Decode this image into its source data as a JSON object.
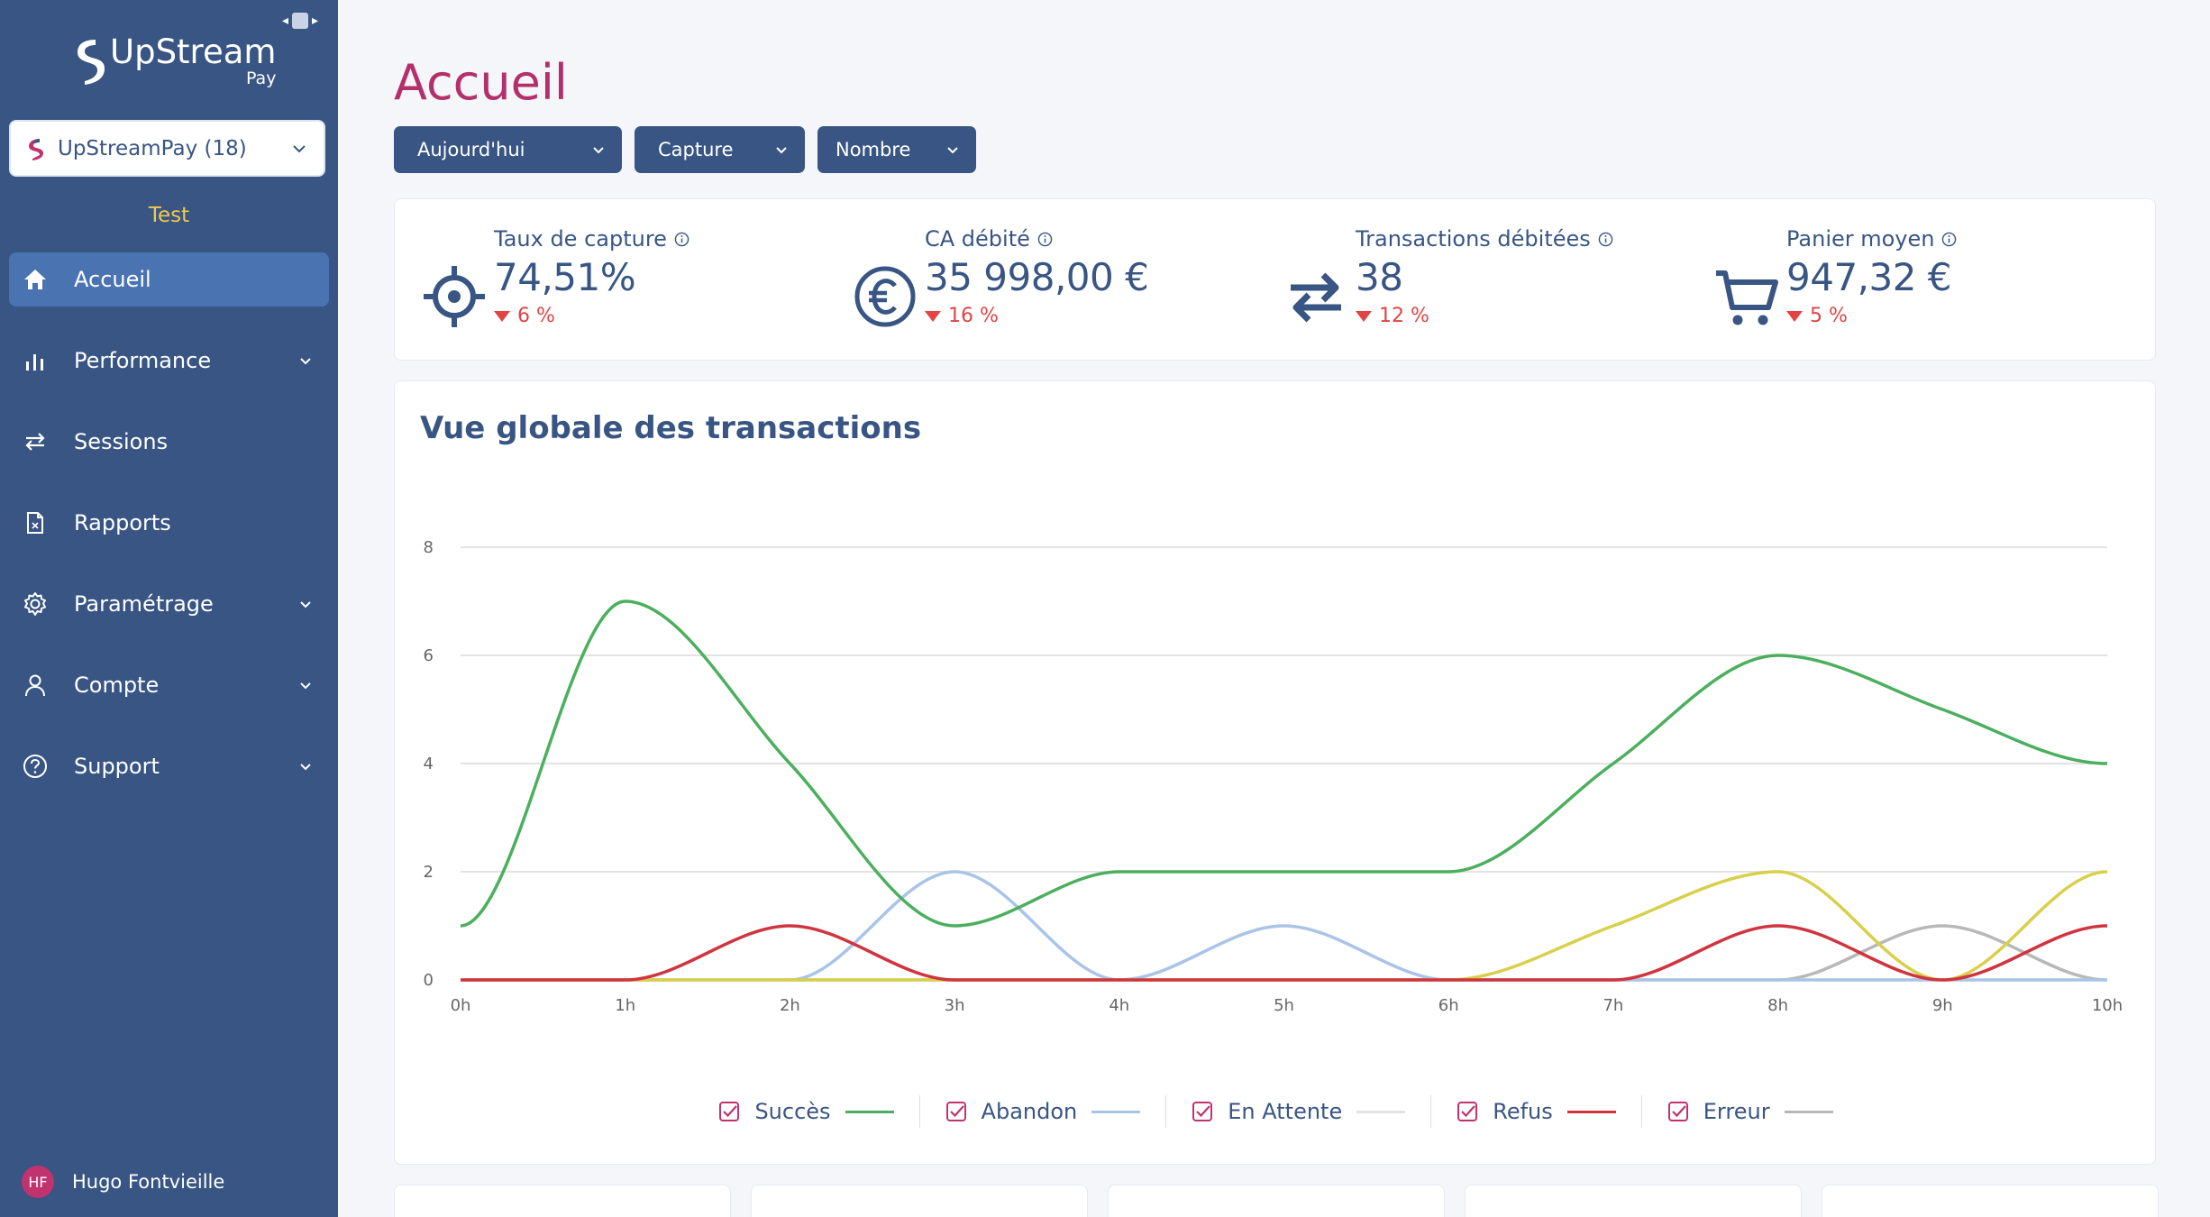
{
  "sidebar": {
    "brand": {
      "name": "UpStream",
      "sub": "Pay"
    },
    "merchant": {
      "label": "UpStreamPay (18)"
    },
    "environment": "Test",
    "nav": [
      {
        "label": "Accueil",
        "icon": "home-icon",
        "active": true,
        "expandable": false
      },
      {
        "label": "Performance",
        "icon": "bar-chart-icon",
        "active": false,
        "expandable": true
      },
      {
        "label": "Sessions",
        "icon": "arrows-exchange-icon",
        "active": false,
        "expandable": false
      },
      {
        "label": "Rapports",
        "icon": "file-icon",
        "active": false,
        "expandable": false
      },
      {
        "label": "Paramétrage",
        "icon": "gear-icon",
        "active": false,
        "expandable": true
      },
      {
        "label": "Compte",
        "icon": "user-icon",
        "active": false,
        "expandable": true
      },
      {
        "label": "Support",
        "icon": "help-circle-icon",
        "active": false,
        "expandable": true
      }
    ],
    "user": {
      "initials": "HF",
      "name": "Hugo Fontvieille"
    }
  },
  "main": {
    "title": "Accueil",
    "filters": [
      "Aujourd'hui",
      "Capture",
      "Nombre"
    ],
    "kpis": [
      {
        "title": "Taux de capture",
        "value": "74,51%",
        "delta": "6 %",
        "icon": "target-icon",
        "trend": "down"
      },
      {
        "title": "CA débité",
        "value": "35 998,00 €",
        "delta": "16 %",
        "icon": "euro-icon",
        "trend": "down"
      },
      {
        "title": "Transactions débitées",
        "value": "38",
        "delta": "12 %",
        "icon": "transfer-icon",
        "trend": "down"
      },
      {
        "title": "Panier moyen",
        "value": "947,32 €",
        "delta": "5 %",
        "icon": "cart-icon",
        "trend": "down"
      }
    ],
    "chart_title": "Vue globale des transactions"
  },
  "chart_data": {
    "type": "line",
    "title": "Vue globale des transactions",
    "x": [
      "0h",
      "1h",
      "2h",
      "3h",
      "4h",
      "5h",
      "6h",
      "7h",
      "8h",
      "9h",
      "10h"
    ],
    "yticks": [
      0,
      2,
      4,
      6,
      8
    ],
    "ylim": [
      0,
      8
    ],
    "grid": true,
    "legend_position": "bottom",
    "series": [
      {
        "name": "Succès",
        "color": "#4caf5f",
        "values": [
          1,
          7,
          4,
          1,
          2,
          2,
          2,
          4,
          6,
          5,
          4
        ]
      },
      {
        "name": "Abandon",
        "color": "#a9c4e8",
        "values": [
          0,
          0,
          0,
          2,
          0,
          1,
          0,
          0,
          0,
          0,
          0
        ]
      },
      {
        "name": "En Attente",
        "color": "#d8d04a",
        "values": [
          0,
          0,
          0,
          0,
          0,
          0,
          0,
          1,
          2,
          0,
          2
        ]
      },
      {
        "name": "Refus",
        "color": "#d0343f",
        "values": [
          0,
          0,
          1,
          0,
          0,
          0,
          0,
          0,
          1,
          0,
          1
        ]
      },
      {
        "name": "Erreur",
        "color": "#b8b8b8",
        "values": [
          0,
          0,
          0,
          0,
          0,
          0,
          0,
          0,
          0,
          1,
          0
        ]
      }
    ],
    "legend_line_colors": [
      "#4caf5f",
      "#a9c4e8",
      "#e3e3e3",
      "#d0343f",
      "#b8b8b8"
    ]
  }
}
